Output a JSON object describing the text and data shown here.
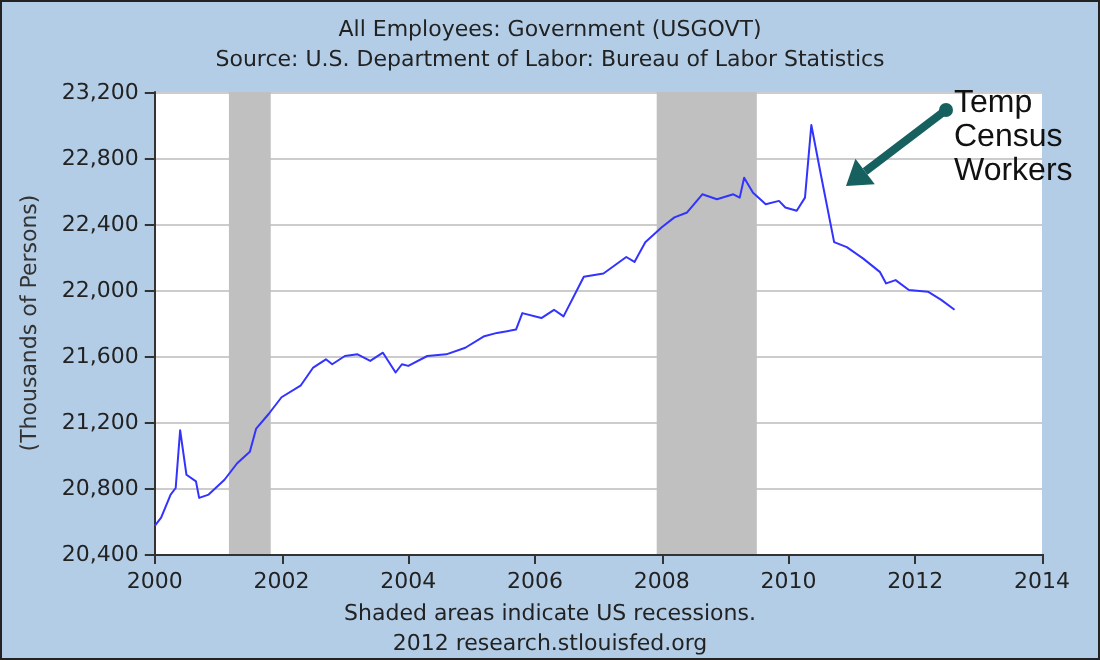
{
  "chart_data": {
    "type": "line",
    "title": "All Employees: Government (USGOVT)",
    "subtitle": "Source: U.S. Department of Labor: Bureau of Labor Statistics",
    "ylabel": "(Thousands of Persons)",
    "annotations": [
      "Temp Census Workers",
      "Shaded areas indicate US recessions.",
      "2012 research.stlouisfed.org"
    ],
    "x": [
      2000.0,
      2000.1,
      2000.25,
      2000.33,
      2000.37,
      2000.4,
      2000.5,
      2000.65,
      2000.7,
      2000.85,
      2001.1,
      2001.3,
      2001.5,
      2001.6,
      2001.8,
      2002.0,
      2002.3,
      2002.5,
      2002.7,
      2002.8,
      2003.0,
      2003.2,
      2003.4,
      2003.6,
      2003.8,
      2003.9,
      2004.0,
      2004.3,
      2004.6,
      2004.9,
      2005.2,
      2005.4,
      2005.7,
      2005.8,
      2006.1,
      2006.3,
      2006.45,
      2006.77,
      2007.08,
      2007.44,
      2007.57,
      2007.74,
      2008.0,
      2008.2,
      2008.4,
      2008.64,
      2008.87,
      2009.13,
      2009.23,
      2009.3,
      2009.44,
      2009.64,
      2009.85,
      2009.95,
      2010.13,
      2010.26,
      2010.36,
      2010.51,
      2010.72,
      2010.92,
      2011.18,
      2011.44,
      2011.54,
      2011.69,
      2011.9,
      2012.2,
      2012.41,
      2012.62
    ],
    "series": [
      {
        "color": "#3333ff",
        "values": [
          20570,
          20620,
          20760,
          20800,
          21000,
          21150,
          20880,
          20840,
          20740,
          20760,
          20850,
          20950,
          21020,
          21160,
          21250,
          21350,
          21420,
          21530,
          21580,
          21550,
          21600,
          21610,
          21570,
          21620,
          21500,
          21550,
          21540,
          21600,
          21610,
          21650,
          21720,
          21740,
          21760,
          21860,
          21830,
          21880,
          21840,
          22080,
          22100,
          22200,
          22170,
          22290,
          22380,
          22440,
          22470,
          22580,
          22550,
          22580,
          22560,
          22680,
          22590,
          22520,
          22540,
          22500,
          22480,
          22560,
          23000,
          22700,
          22290,
          22260,
          22190,
          22110,
          22040,
          22060,
          22000,
          21990,
          21940,
          21880
        ]
      }
    ],
    "xlim": [
      2000,
      2014
    ],
    "xticks": [
      2000,
      2002,
      2004,
      2006,
      2008,
      2010,
      2012,
      2014
    ],
    "ylim": [
      20400,
      23200
    ],
    "yticks": [
      {
        "value": 20400,
        "label": "20,400"
      },
      {
        "value": 20800,
        "label": "20,800"
      },
      {
        "value": 21200,
        "label": "21,200"
      },
      {
        "value": 21600,
        "label": "21,600"
      },
      {
        "value": 22000,
        "label": "22,000"
      },
      {
        "value": 22400,
        "label": "22,400"
      },
      {
        "value": 22800,
        "label": "22,800"
      },
      {
        "value": 23200,
        "label": "23,200"
      }
    ],
    "bands": [
      {
        "axis": "x",
        "from": 2001.17,
        "to": 2001.83,
        "color": "#c0c0c0"
      },
      {
        "axis": "x",
        "from": 2007.92,
        "to": 2009.5,
        "color": "#c0c0c0"
      }
    ],
    "grid": "y",
    "marker": "none",
    "line_style": "solid"
  }
}
